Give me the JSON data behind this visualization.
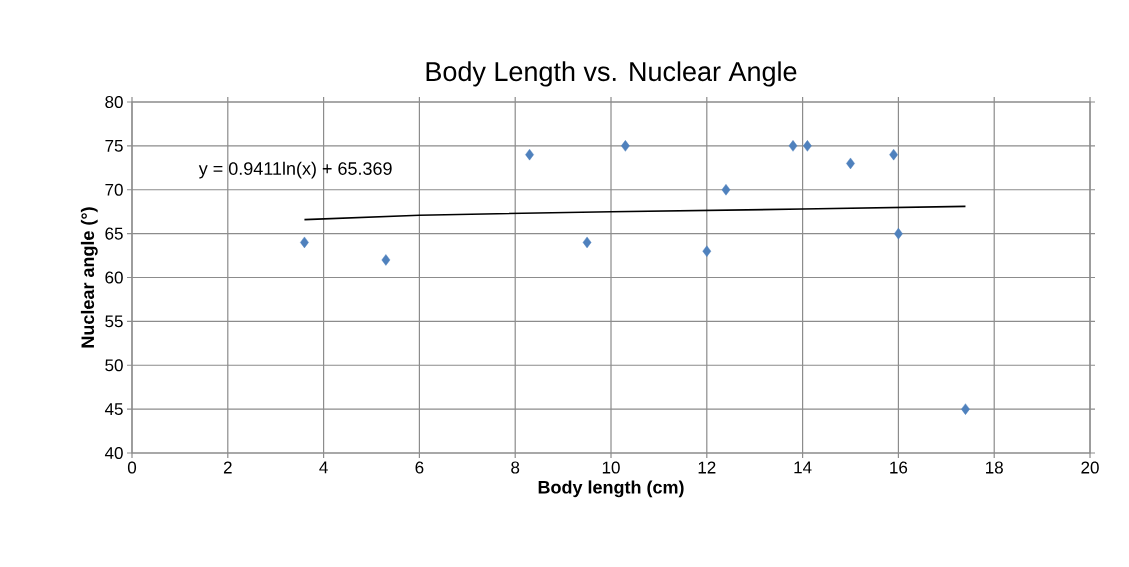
{
  "chart_data": {
    "type": "scatter",
    "title": "Body Length vs. Nuclear Angle",
    "xlabel": "Body length (cm)",
    "ylabel": "Nuclear angle (°)",
    "annotations": [
      "y = 0.9411ln(x) + 65.369"
    ],
    "xlim": [
      0,
      20
    ],
    "xticks": [
      0,
      2,
      4,
      6,
      8,
      10,
      12,
      14,
      16,
      18,
      20
    ],
    "ylim": [
      40,
      80
    ],
    "yticks": [
      40,
      45,
      50,
      55,
      60,
      65,
      70,
      75,
      80
    ],
    "grid": true,
    "marker": "diamond",
    "series": [
      {
        "color": "#4f81bd",
        "x": [
          3.6,
          5.3,
          8.3,
          9.5,
          10.3,
          12.0,
          12.4,
          13.8,
          14.1,
          15.0,
          15.9,
          16.0,
          17.4
        ],
        "values": [
          64,
          62,
          74,
          64,
          75,
          63,
          70,
          75,
          75,
          73,
          74,
          65,
          45
        ]
      },
      {
        "type": "line",
        "color": "#000000",
        "marker": "none",
        "x": [
          3.6,
          6,
          10,
          14,
          17.4
        ],
        "values": [
          66.6,
          67.1,
          67.5,
          67.8,
          68.1
        ]
      }
    ]
  }
}
